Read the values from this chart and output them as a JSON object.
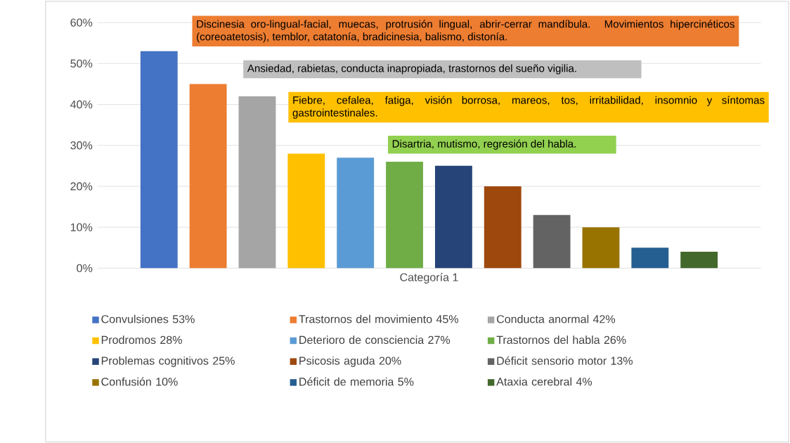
{
  "chart_data": {
    "type": "bar",
    "categories": [
      "Categoría 1"
    ],
    "ylim": [
      0,
      60
    ],
    "yticks": [
      {
        "value": 0,
        "label": "0%"
      },
      {
        "value": 10,
        "label": "10%"
      },
      {
        "value": 20,
        "label": "20%"
      },
      {
        "value": 30,
        "label": "30%"
      },
      {
        "value": 40,
        "label": "40%"
      },
      {
        "value": 50,
        "label": "50%"
      },
      {
        "value": 60,
        "label": "60%"
      }
    ],
    "grid": "y",
    "legend": "bottom",
    "series": [
      {
        "name": "Convulsiones 53%",
        "color": "#4472c4",
        "values": [
          53
        ]
      },
      {
        "name": "Trastornos del movimiento 45%",
        "color": "#ed7d31",
        "values": [
          45
        ]
      },
      {
        "name": "Conducta anormal 42%",
        "color": "#a5a5a5",
        "values": [
          42
        ]
      },
      {
        "name": "Prodromos 28%",
        "color": "#ffc000",
        "values": [
          28
        ]
      },
      {
        "name": "Deterioro de consciencia 27%",
        "color": "#5b9bd5",
        "values": [
          27
        ]
      },
      {
        "name": "Trastornos del habla 26%",
        "color": "#70ad47",
        "values": [
          26
        ]
      },
      {
        "name": "Problemas cognitivos 25%",
        "color": "#264478",
        "values": [
          25
        ]
      },
      {
        "name": "Psicosis aguda 20%",
        "color": "#9e480e",
        "values": [
          20
        ]
      },
      {
        "name": "Déficit sensorio motor 13%",
        "color": "#636363",
        "values": [
          13
        ]
      },
      {
        "name": "Confusión 10%",
        "color": "#997300",
        "values": [
          10
        ]
      },
      {
        "name": "Déficit de memoria 5%",
        "color": "#255e91",
        "values": [
          5
        ]
      },
      {
        "name": "Ataxia cerebral 4%",
        "color": "#43682b",
        "values": [
          4
        ]
      }
    ],
    "annotations": [
      "Discinesia oro-lingual-facial, muecas, protrusión lingual, abrir-cerrar mandíbula. Movimientos hipercinéticos (coreoatetosis), temblor, catatonía, bradicinesia, balismo, distonía.",
      "Ansiedad, rabietas, conducta inapropiada, trastornos del sueño vigilia.",
      "Fiebre, cefalea, fatiga, visión borrosa, mareos, tos, irritabilidad, insomnio y síntomas gastrointestinales.",
      "Disartria, mutismo, regresión del habla."
    ]
  }
}
